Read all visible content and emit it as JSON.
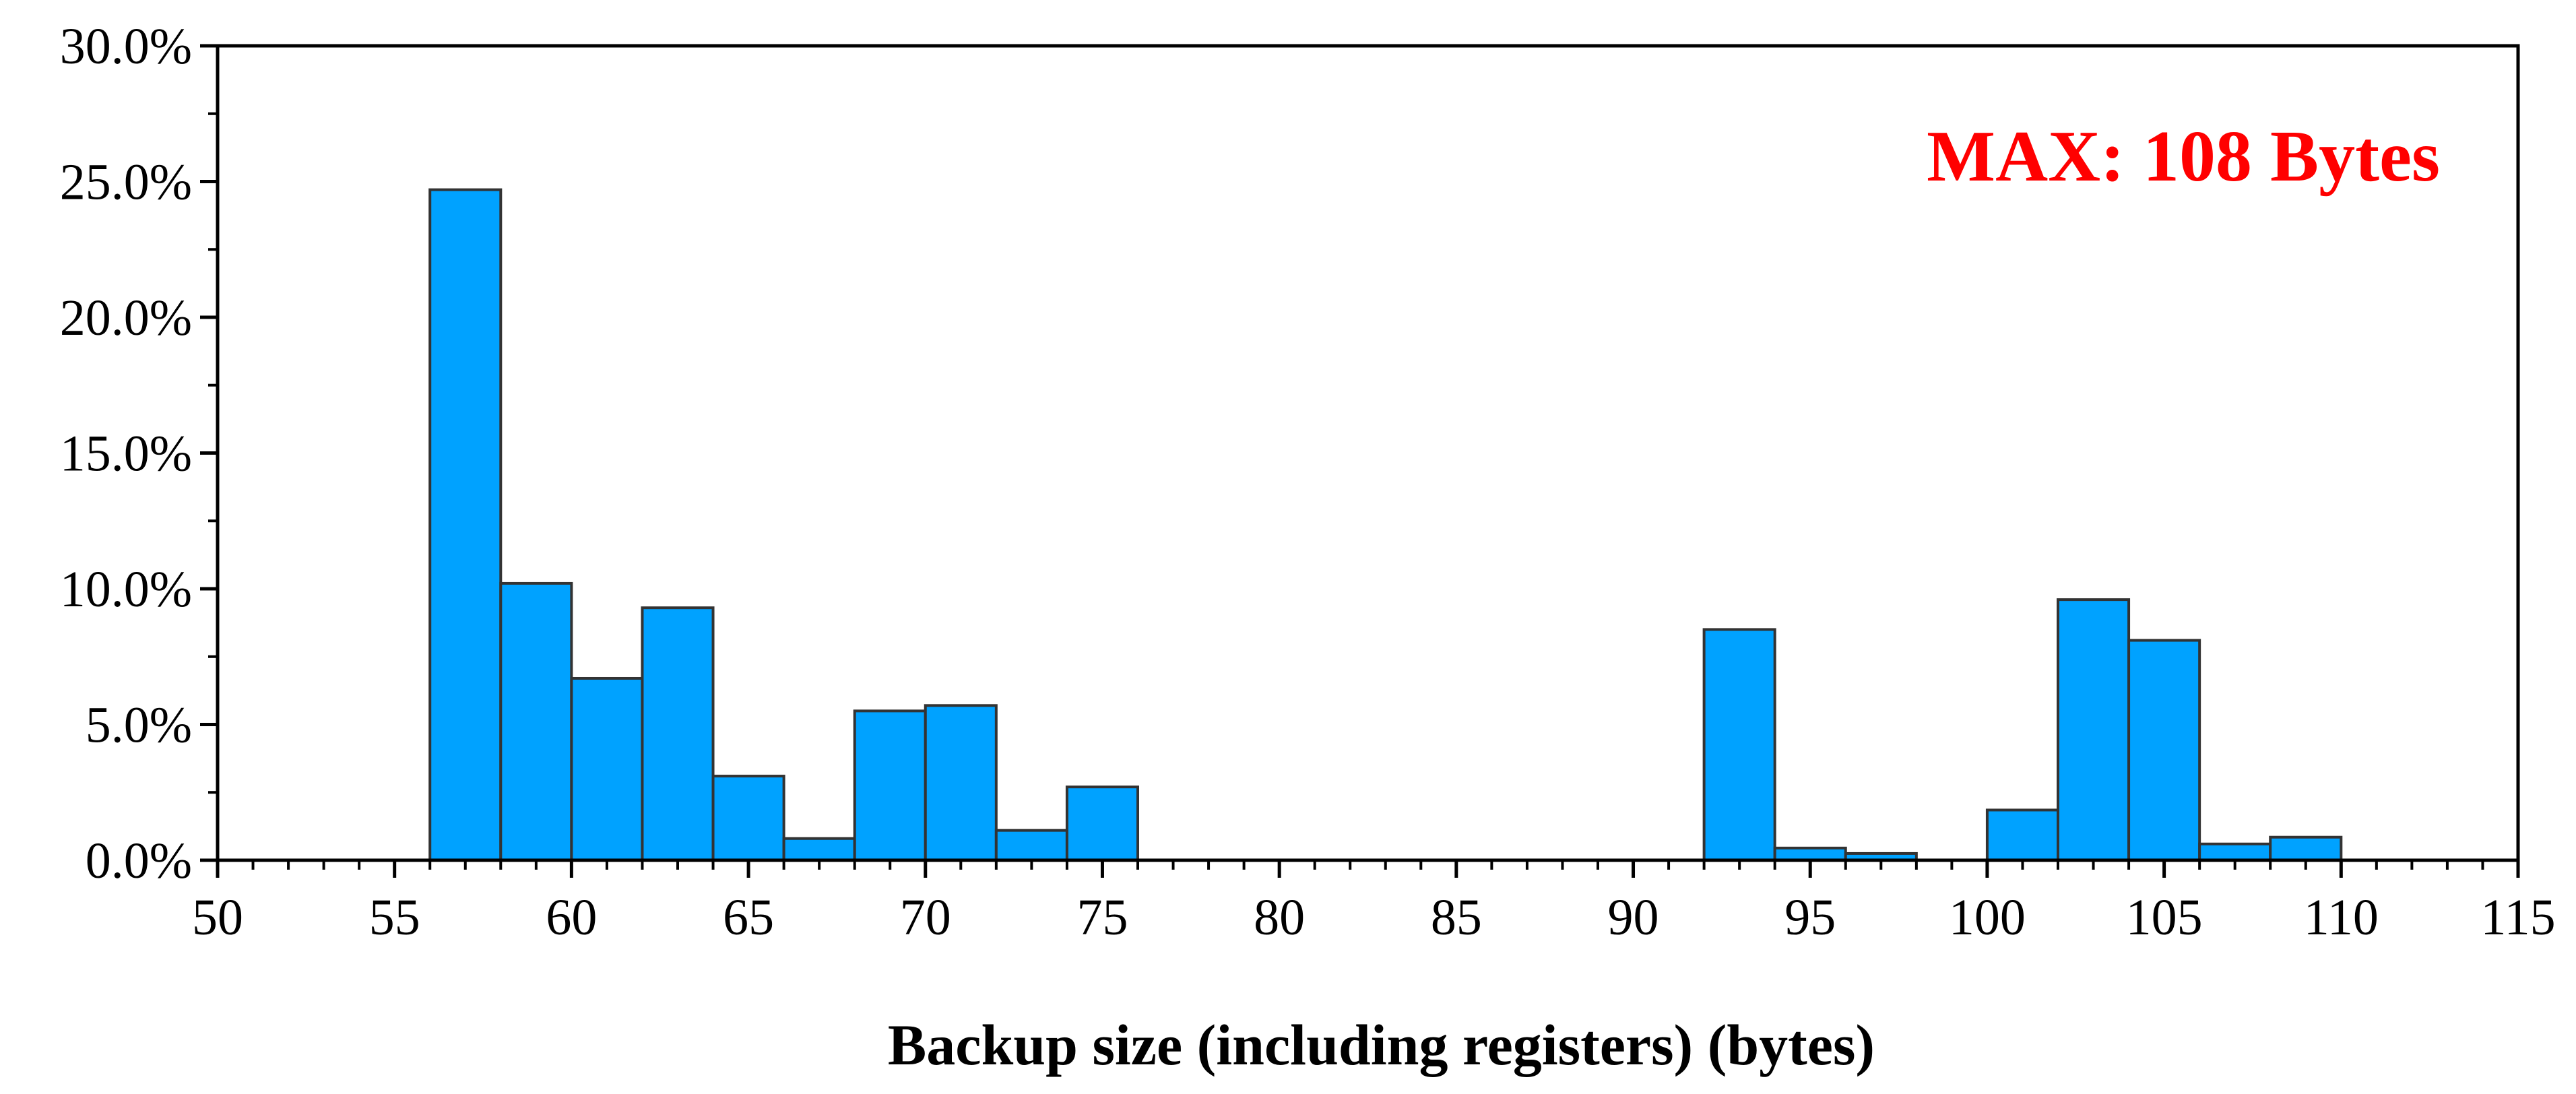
{
  "chart_data": {
    "type": "bar",
    "title": "",
    "xlabel": "Backup size (including registers) (bytes)",
    "ylabel": "",
    "bin_width": 2,
    "bins": [
      {
        "start": 56,
        "end": 58,
        "value": 24.7
      },
      {
        "start": 58,
        "end": 60,
        "value": 10.2
      },
      {
        "start": 60,
        "end": 62,
        "value": 6.7
      },
      {
        "start": 62,
        "end": 64,
        "value": 9.3
      },
      {
        "start": 64,
        "end": 66,
        "value": 3.1
      },
      {
        "start": 66,
        "end": 68,
        "value": 0.8
      },
      {
        "start": 68,
        "end": 70,
        "value": 5.5
      },
      {
        "start": 70,
        "end": 72,
        "value": 5.7
      },
      {
        "start": 72,
        "end": 74,
        "value": 1.1
      },
      {
        "start": 74,
        "end": 76,
        "value": 2.7
      },
      {
        "start": 92,
        "end": 94,
        "value": 8.5
      },
      {
        "start": 94,
        "end": 96,
        "value": 0.45
      },
      {
        "start": 96,
        "end": 98,
        "value": 0.25
      },
      {
        "start": 100,
        "end": 102,
        "value": 1.85
      },
      {
        "start": 102,
        "end": 104,
        "value": 9.6
      },
      {
        "start": 104,
        "end": 106,
        "value": 8.1
      },
      {
        "start": 106,
        "end": 108,
        "value": 0.6
      },
      {
        "start": 108,
        "end": 110,
        "value": 0.85
      }
    ],
    "xlim": [
      50,
      115
    ],
    "ylim": [
      0,
      30
    ],
    "x_ticks": [
      50,
      55,
      60,
      65,
      70,
      75,
      80,
      85,
      90,
      95,
      100,
      105,
      110,
      115
    ],
    "y_ticks": [
      0,
      5,
      10,
      15,
      20,
      25,
      30
    ],
    "y_tick_labels": [
      "0.0%",
      "5.0%",
      "10.0%",
      "15.0%",
      "20.0%",
      "25.0%",
      "30.0%"
    ],
    "annotation": "MAX: 108 Bytes",
    "grid": false,
    "colors": {
      "bar_fill": "#00A2FF",
      "bar_edge": "#333333",
      "annotation": "#FF0000",
      "axis": "#000000"
    }
  }
}
